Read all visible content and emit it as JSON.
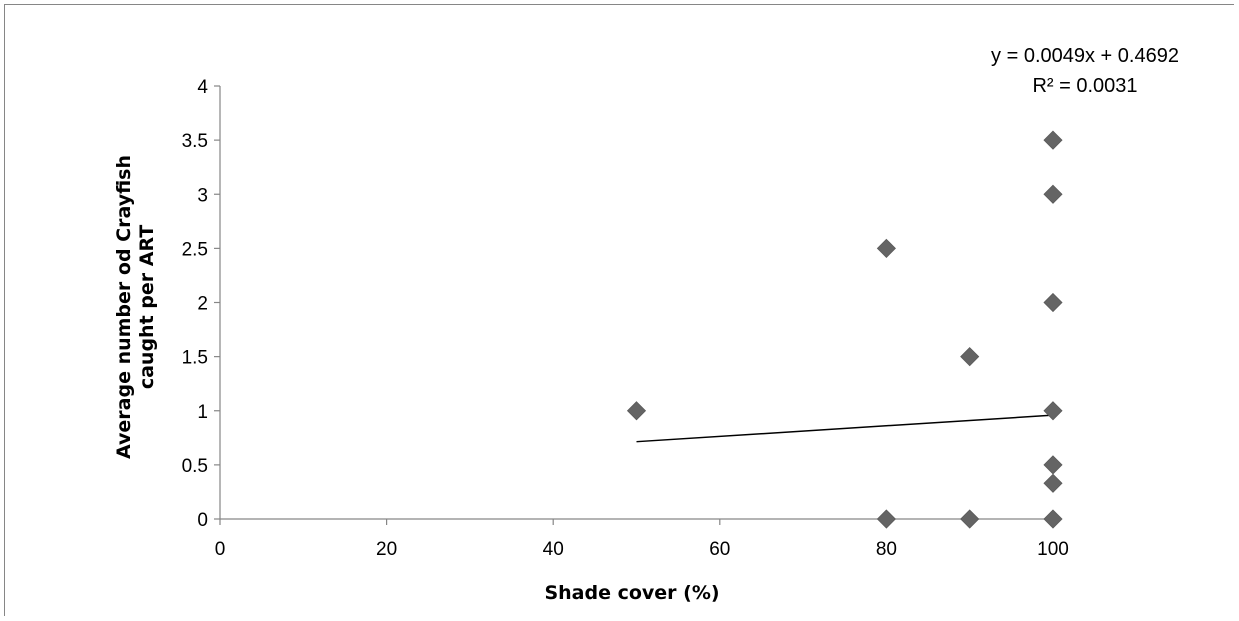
{
  "chart_data": {
    "type": "scatter",
    "xlabel": "Shade cover (%)",
    "ylabel_line1": "Average number od Crayfish",
    "ylabel_line2": "caught per ART",
    "xlim": [
      0,
      100
    ],
    "ylim": [
      0,
      4
    ],
    "xticks": [
      "0",
      "20",
      "40",
      "60",
      "80",
      "100"
    ],
    "yticks": [
      "0",
      "0.5",
      "1",
      "1.5",
      "2",
      "2.5",
      "3",
      "3.5",
      "4"
    ],
    "grid": false,
    "points": [
      {
        "x": 50,
        "y": 1
      },
      {
        "x": 80,
        "y": 2.5
      },
      {
        "x": 80,
        "y": 0
      },
      {
        "x": 90,
        "y": 1.5
      },
      {
        "x": 90,
        "y": 0
      },
      {
        "x": 100,
        "y": 3.5
      },
      {
        "x": 100,
        "y": 3
      },
      {
        "x": 100,
        "y": 2
      },
      {
        "x": 100,
        "y": 1
      },
      {
        "x": 100,
        "y": 0.5
      },
      {
        "x": 100,
        "y": 0.33
      },
      {
        "x": 100,
        "y": 0
      }
    ],
    "trendline": {
      "slope": 0.0049,
      "intercept": 0.4692,
      "x_range": [
        50,
        100
      ]
    },
    "equation": "y = 0.0049x + 0.4692",
    "r_squared": "R² = 0.0031",
    "colors": {
      "marker": "#646464",
      "trendline": "#000000",
      "axis": "#868686"
    }
  }
}
